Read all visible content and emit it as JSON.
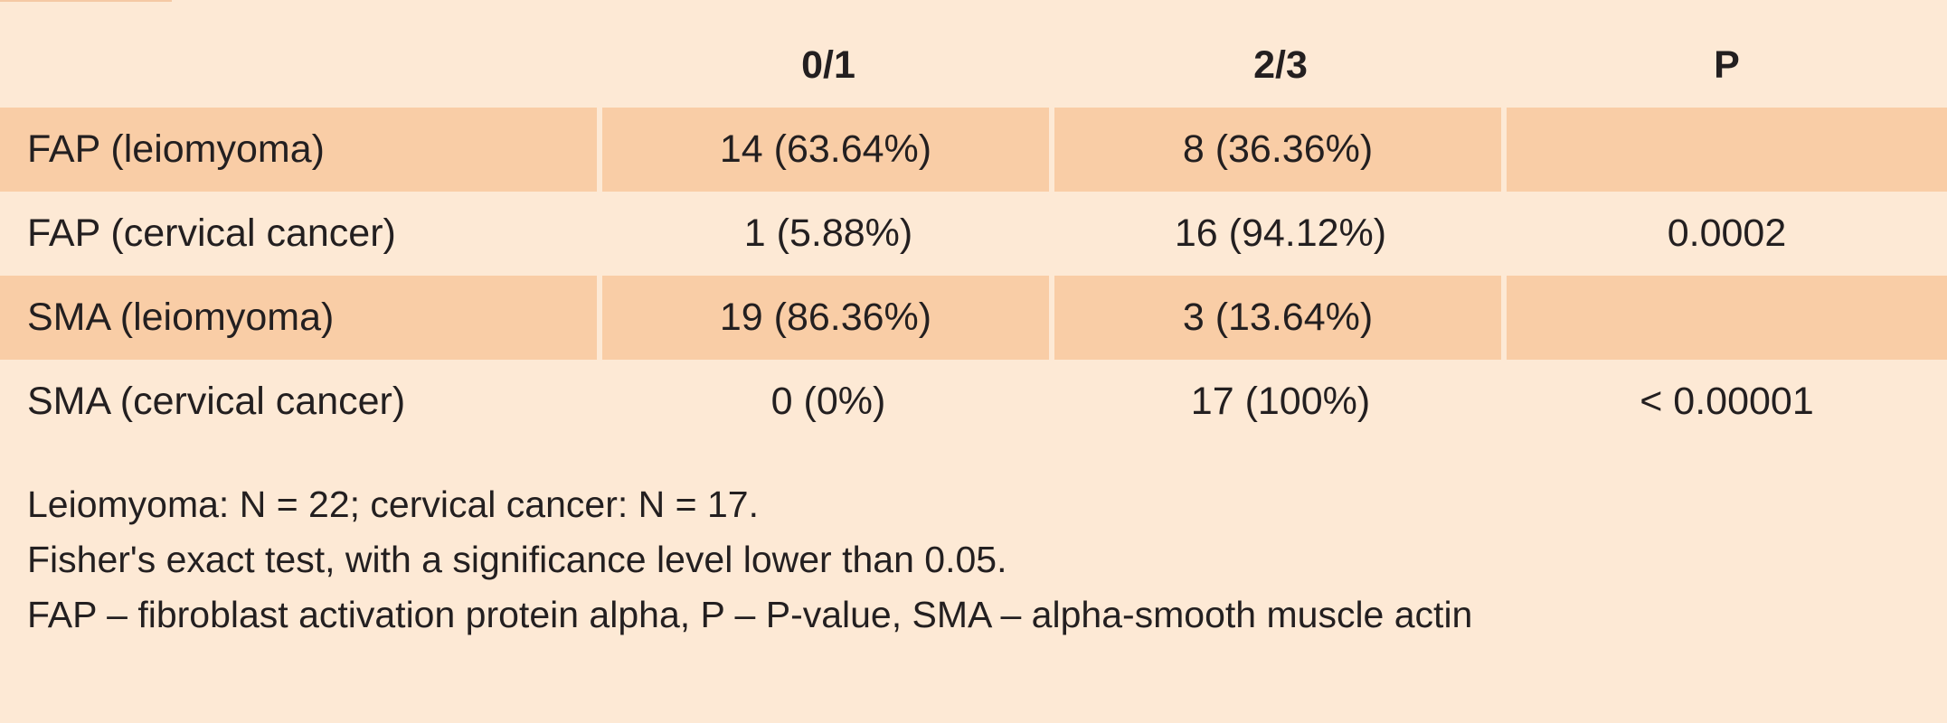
{
  "table": {
    "headers": [
      "",
      "0/1",
      "2/3",
      "P"
    ],
    "rows": [
      {
        "label": "FAP (leiomyoma)",
        "c01": "14 (63.64%)",
        "c23": "8 (36.36%)",
        "p": ""
      },
      {
        "label": "FAP (cervical cancer)",
        "c01": "1 (5.88%)",
        "c23": "16 (94.12%)",
        "p": "0.0002"
      },
      {
        "label": "SMA (leiomyoma)",
        "c01": "19 (86.36%)",
        "c23": "3 (13.64%)",
        "p": ""
      },
      {
        "label": "SMA (cervical cancer)",
        "c01": "0 (0%)",
        "c23": "17 (100%)",
        "p": "< 0.00001"
      }
    ]
  },
  "notes": [
    "Leiomyoma: N = 22; cervical cancer: N = 17.",
    "Fisher's exact test, with a significance level lower than 0.05.",
    "FAP – fibroblast activation protein alpha, P – P-value, SMA – alpha-smooth muscle actin"
  ],
  "colors": {
    "background": "#fde9d5",
    "row_shade": "#f9cda6",
    "text": "#231f20"
  }
}
